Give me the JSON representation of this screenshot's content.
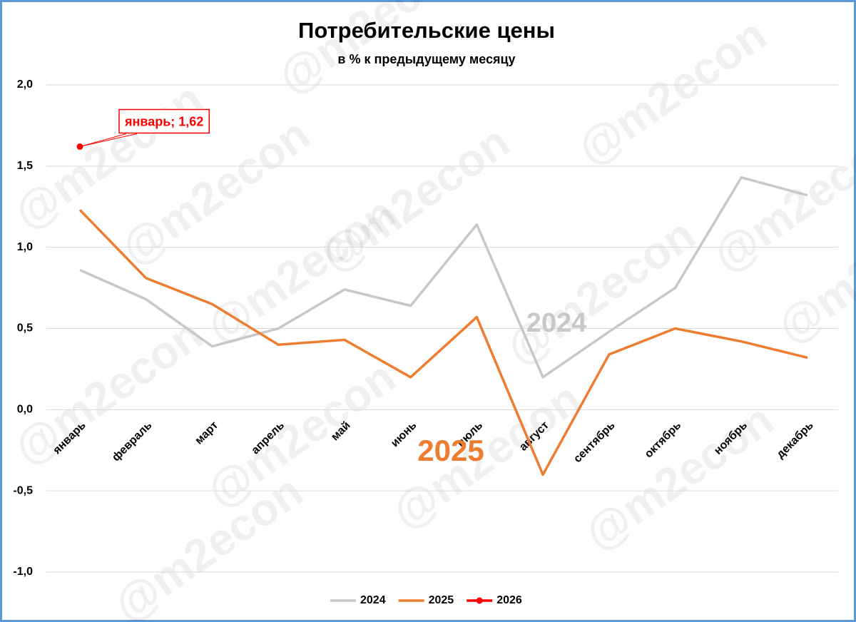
{
  "chart_data": {
    "type": "line",
    "title": "Потребительские цены",
    "subtitle": "в % к предыдущему месяцу",
    "watermark": "@m2econ",
    "categories": [
      "январь",
      "февраль",
      "март",
      "апрель",
      "май",
      "июнь",
      "июль",
      "август",
      "сентябрь",
      "октябрь",
      "ноябрь",
      "декабрь"
    ],
    "series": [
      {
        "name": "2024",
        "color": "#c8c8c8",
        "values": [
          0.86,
          0.68,
          0.39,
          0.5,
          0.74,
          0.64,
          1.14,
          0.2,
          0.48,
          0.75,
          1.43,
          1.32
        ]
      },
      {
        "name": "2025",
        "color": "#ed7d31",
        "values": [
          1.23,
          0.81,
          0.65,
          0.4,
          0.43,
          0.2,
          0.57,
          -0.4,
          0.34,
          0.5,
          0.42,
          0.32
        ]
      },
      {
        "name": "2026",
        "color": "#ff0000",
        "marker": true,
        "values": [
          1.62,
          null,
          null,
          null,
          null,
          null,
          null,
          null,
          null,
          null,
          null,
          null
        ],
        "value_labels": [
          "январь; 1,62",
          null,
          null,
          null,
          null,
          null,
          null,
          null,
          null,
          null,
          null,
          null
        ]
      }
    ],
    "ylim": [
      -1,
      2
    ],
    "yticks": [
      {
        "value": -1,
        "label": "-1,0"
      },
      {
        "value": -0.5,
        "label": "-0,5"
      },
      {
        "value": 0,
        "label": "0,0"
      },
      {
        "value": 0.5,
        "label": "0,5"
      },
      {
        "value": 1,
        "label": "1,0"
      },
      {
        "value": 1.5,
        "label": "1,5"
      },
      {
        "value": 2,
        "label": "2,0"
      }
    ],
    "grid": true,
    "legend": "bottom"
  }
}
